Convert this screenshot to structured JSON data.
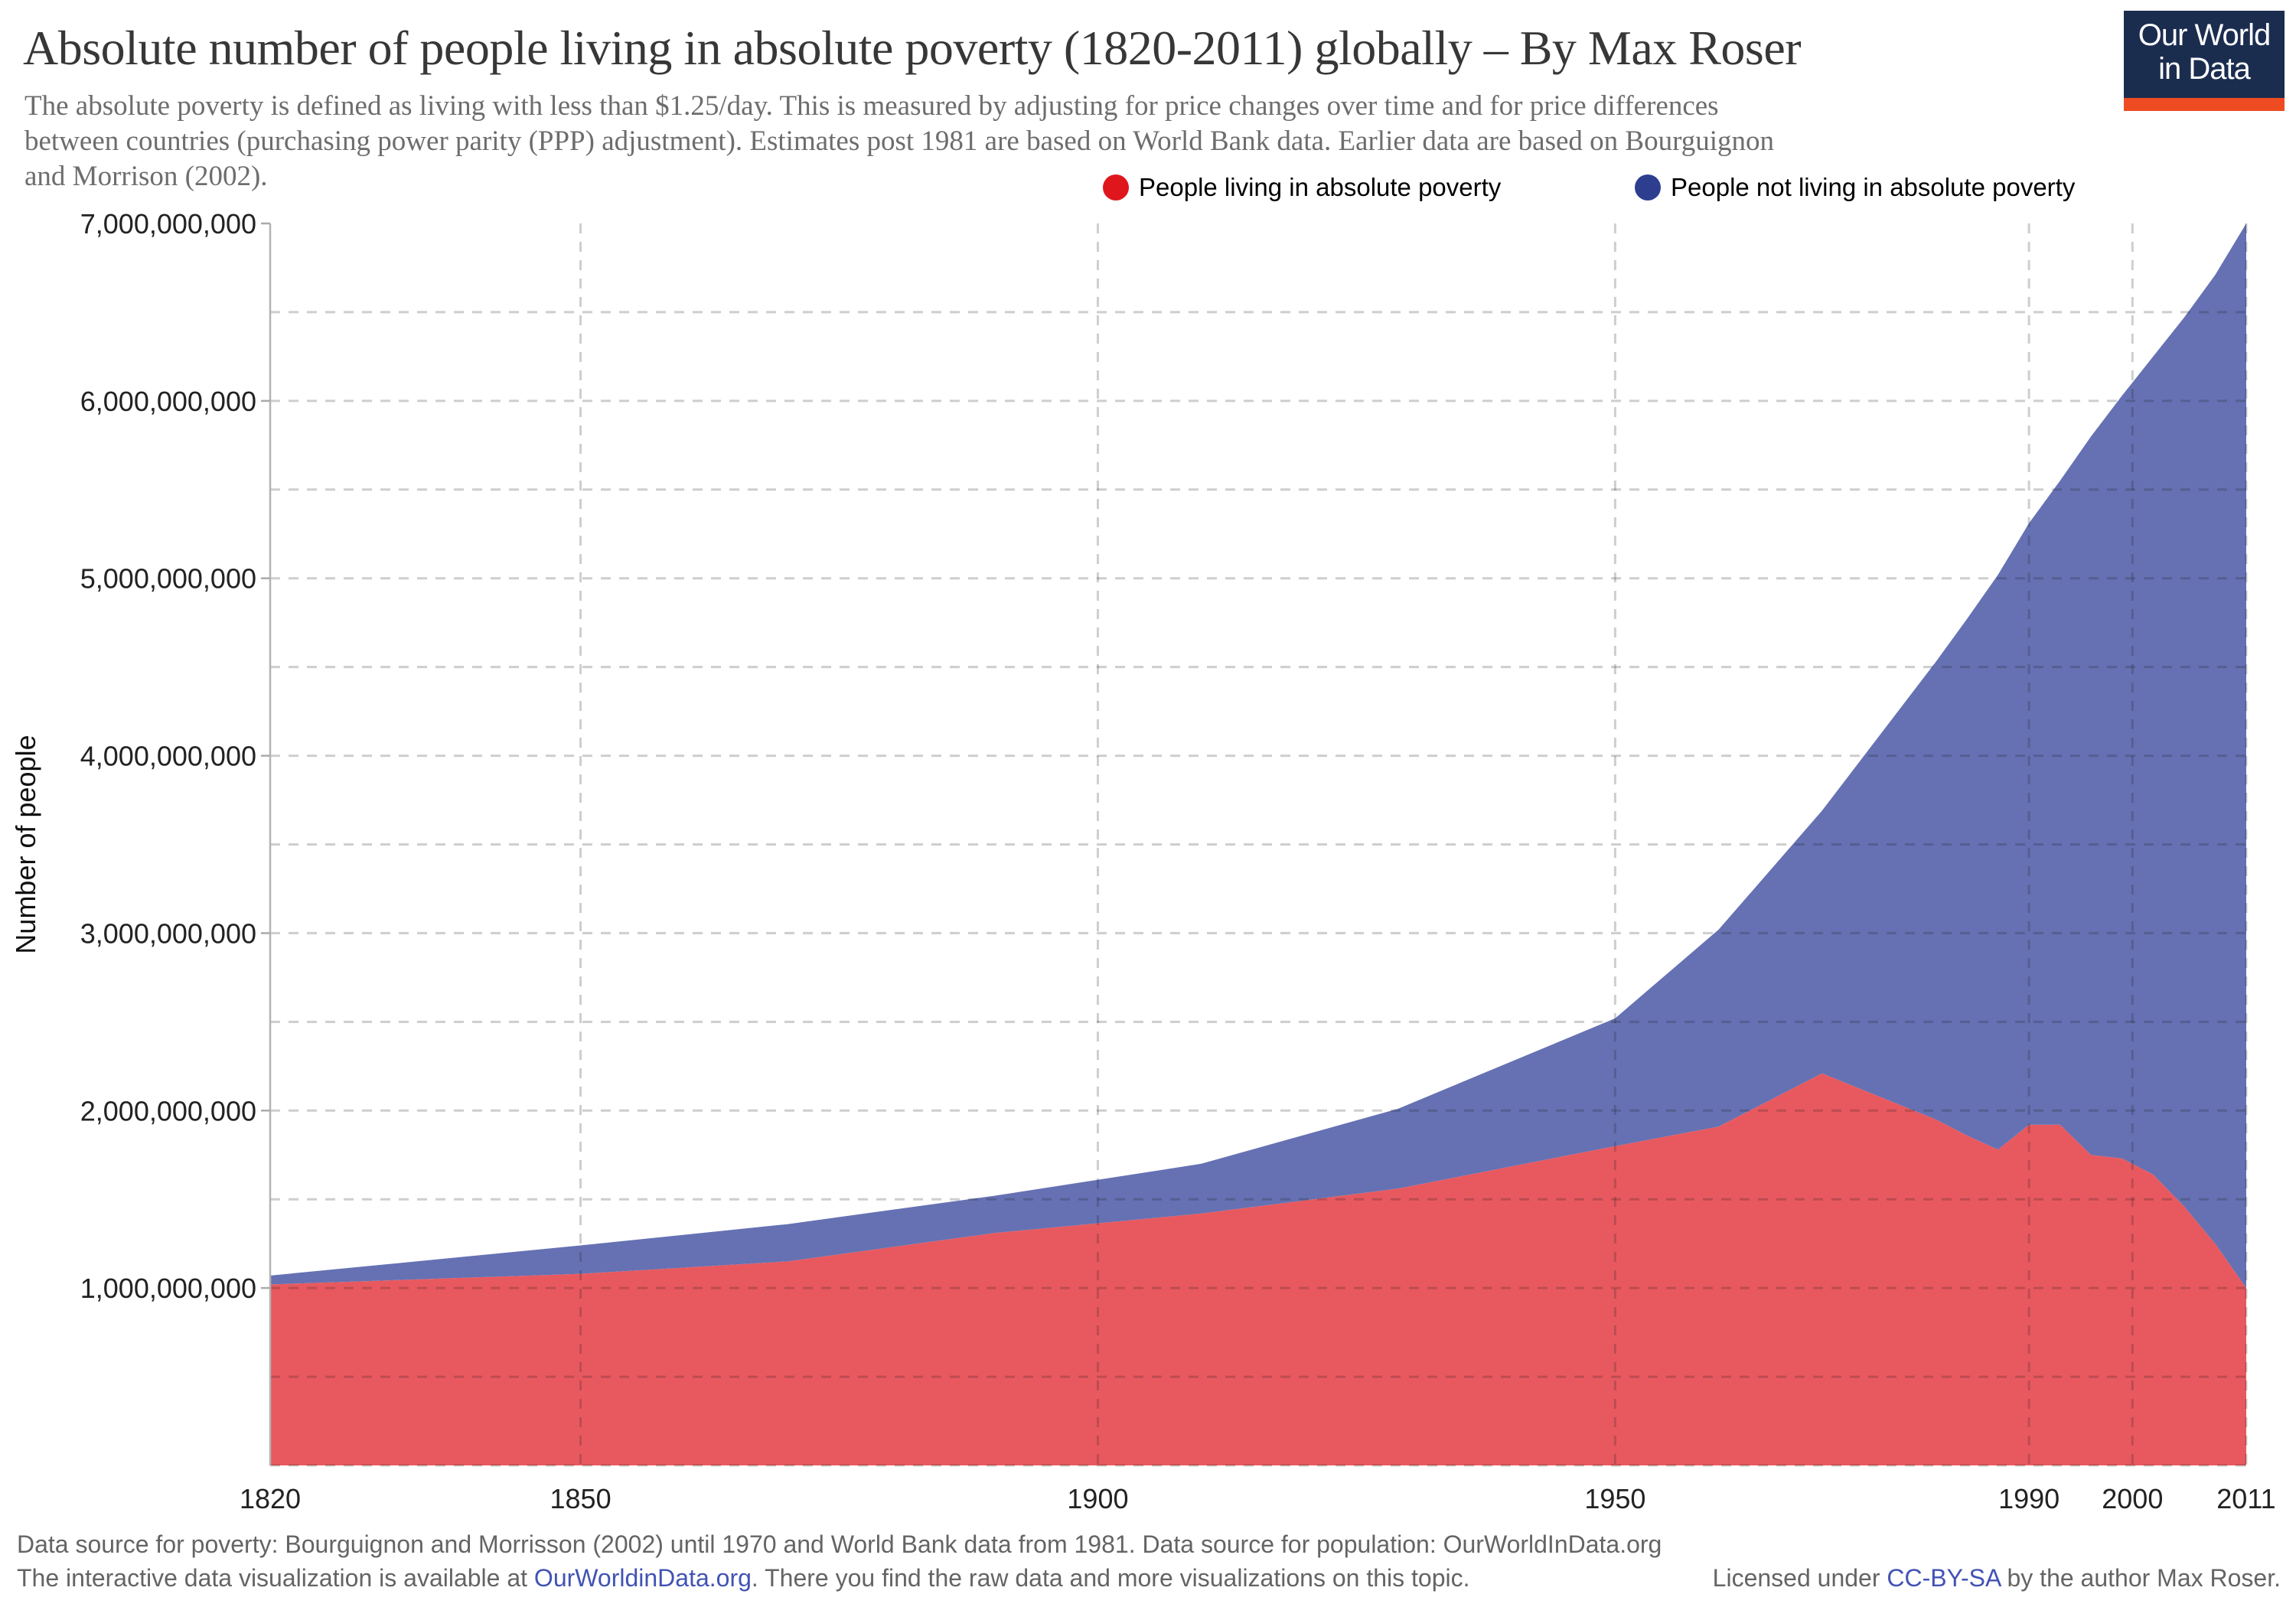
{
  "header": {
    "title": "Absolute number of people living in absolute poverty (1820-2011) globally – By Max Roser",
    "subtitle_lines": [
      "The absolute poverty is defined as living with less than $1.25/day. This is measured by adjusting for price changes over time and for price differences",
      "between countries (purchasing power parity (PPP) adjustment). Estimates post 1981 are based on World Bank data. Earlier data are based on Bourguignon",
      "and Morrison (2002)."
    ],
    "title_color": "#373737",
    "subtitle_color": "#6d6d6d"
  },
  "logo": {
    "line1": "Our World",
    "line2": "in Data",
    "bg_color": "#1b2d4f",
    "bar_color": "#ee4b23",
    "text_color": "#ffffff"
  },
  "legend": {
    "items": [
      {
        "label": "People living in absolute poverty",
        "dot_color": "#e0161d"
      },
      {
        "label": "People not living in absolute poverty",
        "dot_color": "#2d3e8f"
      }
    ]
  },
  "chart_data": {
    "type": "area",
    "stacked": true,
    "title": "Absolute number of people living in absolute poverty (1820-2011) globally",
    "ylabel": "Number of people",
    "xlabel": "",
    "unit": "billion people",
    "grid": "dashed",
    "legend_position": "top",
    "x_range": [
      1820,
      2011
    ],
    "ylim_billions": [
      0,
      7
    ],
    "y_minor_step_billions": 0.5,
    "x": [
      1820,
      1850,
      1870,
      1890,
      1910,
      1929,
      1950,
      1960,
      1970,
      1981,
      1984,
      1987,
      1990,
      1993,
      1996,
      1999,
      2002,
      2005,
      2008,
      2011
    ],
    "series": [
      {
        "name": "People living in absolute poverty",
        "color": "#e8595f",
        "values_billions": [
          1.02,
          1.08,
          1.15,
          1.31,
          1.42,
          1.56,
          1.8,
          1.91,
          2.21,
          1.95,
          1.86,
          1.78,
          1.92,
          1.92,
          1.75,
          1.73,
          1.64,
          1.46,
          1.25,
          1.0
        ]
      },
      {
        "name": "People not living in absolute poverty",
        "color": "#6571b3",
        "values_billions": [
          0.05,
          0.16,
          0.21,
          0.21,
          0.28,
          0.45,
          0.72,
          1.11,
          1.48,
          2.58,
          2.91,
          3.24,
          3.39,
          3.63,
          4.05,
          4.3,
          4.61,
          5.01,
          5.46,
          6.0
        ]
      }
    ],
    "totals_billions": [
      1.07,
      1.24,
      1.36,
      1.52,
      1.7,
      2.01,
      2.52,
      3.02,
      3.69,
      4.53,
      4.77,
      5.02,
      5.31,
      5.55,
      5.8,
      6.03,
      6.25,
      6.47,
      6.71,
      7.0
    ],
    "y_ticks": [
      {
        "value_billions": 1,
        "label": "1,000,000,000"
      },
      {
        "value_billions": 2,
        "label": "2,000,000,000"
      },
      {
        "value_billions": 3,
        "label": "3,000,000,000"
      },
      {
        "value_billions": 4,
        "label": "4,000,000,000"
      },
      {
        "value_billions": 5,
        "label": "5,000,000,000"
      },
      {
        "value_billions": 6,
        "label": "6,000,000,000"
      },
      {
        "value_billions": 7,
        "label": "7,000,000,000"
      }
    ],
    "x_ticks": [
      {
        "year": 1820,
        "label": "1820"
      },
      {
        "year": 1850,
        "label": "1850"
      },
      {
        "year": 1900,
        "label": "1900"
      },
      {
        "year": 1950,
        "label": "1950"
      },
      {
        "year": 1990,
        "label": "1990"
      },
      {
        "year": 2000,
        "label": "2000"
      },
      {
        "year": 2011,
        "label": "2011"
      }
    ],
    "x_grid_years": [
      1850,
      1900,
      1950,
      1990,
      2000,
      2011
    ]
  },
  "footer": {
    "line1": "Data source for poverty: Bourguignon and Morrisson (2002) until 1970 and World Bank data from 1981. Data source for population: OurWorldInData.org",
    "line2_pre": "The interactive data visualization is available at ",
    "line2_link": "OurWorldinData.org",
    "line2_post": ". There you find the raw data and more visualizations on this topic.",
    "license_pre": "Licensed under ",
    "license_link": "CC-BY-SA",
    "license_post": " by the author Max Roser.",
    "text_color": "#646464",
    "link_color": "#4253b4"
  }
}
